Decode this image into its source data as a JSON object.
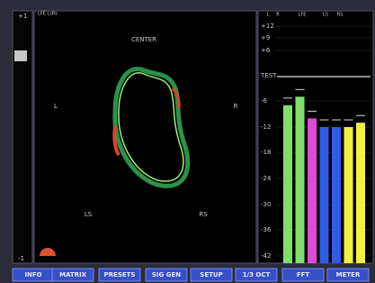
{
  "left_panel": {
    "top_label": "+1",
    "bottom_label": "-1"
  },
  "scope": {
    "corner_label": "LFE LsRs",
    "center": "CENTER",
    "left": "L",
    "right": "R",
    "left_surround": "LS",
    "right_surround": "RS"
  },
  "meter": {
    "channels": [
      "L",
      "R",
      "LFE",
      "LS",
      "RS"
    ],
    "test_label": "TEST",
    "ticks": [
      {
        "value": 12,
        "label": "+12"
      },
      {
        "value": 9,
        "label": "+9"
      },
      {
        "value": 6,
        "label": "+6"
      },
      -6,
      -12,
      -18,
      -24,
      -30,
      -36,
      -42
    ],
    "bars": [
      {
        "color": "#7ee06a",
        "value": -7
      },
      {
        "color": "#7ee06a",
        "value": -5
      },
      {
        "color": "#e04ad8",
        "value": -10
      },
      {
        "color": "#2f5ce8",
        "value": -12
      },
      {
        "color": "#2f5ce8",
        "value": -12
      },
      {
        "color": "#f2f040",
        "value": -12
      },
      {
        "color": "#f2f040",
        "value": -11
      }
    ]
  },
  "buttons": [
    "INFO",
    "MATRIX",
    "PRESETS",
    "SIG GEN",
    "SETUP",
    "1/3 OCT",
    "FFT",
    "METER"
  ]
}
